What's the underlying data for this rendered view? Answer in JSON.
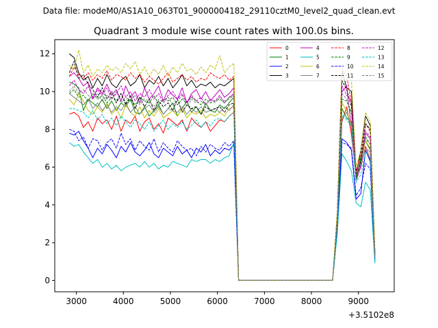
{
  "figure": {
    "suptitle": "Data file: modeM0/AS1A10_063T01_9000004182_29110cztM0_level2_quad_clean.evt",
    "title": "Quadrant 3 module wise count rates with 100.0s bins.",
    "x_offset_label": "+3.5102e8"
  },
  "chart_data": {
    "type": "line",
    "title": "Quadrant 3 module wise count rates with 100.0s bins.",
    "xlabel": "",
    "ylabel": "",
    "x_offset": 351020000,
    "xlim": [
      2540,
      9760
    ],
    "ylim": [
      -0.6,
      12.75
    ],
    "x_ticks": [
      3000,
      4000,
      5000,
      6000,
      7000,
      8000,
      9000
    ],
    "y_ticks": [
      0,
      2,
      4,
      6,
      8,
      10,
      12
    ],
    "legend_position": "top-right",
    "grid": false,
    "x": [
      2850,
      2950,
      3050,
      3150,
      3250,
      3350,
      3450,
      3550,
      3650,
      3750,
      3850,
      3950,
      4050,
      4150,
      4250,
      4350,
      4450,
      4550,
      4650,
      4750,
      4850,
      4950,
      5050,
      5150,
      5250,
      5350,
      5450,
      5550,
      5650,
      5750,
      5850,
      5950,
      6050,
      6150,
      6250,
      6350,
      6450,
      6550,
      6650,
      6750,
      6850,
      6950,
      7050,
      7150,
      7250,
      7350,
      7450,
      7550,
      7650,
      7750,
      7850,
      7950,
      8050,
      8150,
      8250,
      8350,
      8450,
      8550,
      8650,
      8750,
      8850,
      8950,
      9050,
      9150,
      9250,
      9350,
      9450
    ],
    "gap_start_index": 36,
    "gap_end_index": 56,
    "series": [
      {
        "name": "0",
        "color": "#ff0000",
        "dash": "solid",
        "pre": [
          8.8,
          8.9,
          8.7,
          8.1,
          8.4,
          7.9,
          8.6,
          8.3,
          8.5,
          8.0,
          8.7,
          7.9,
          8.5,
          8.3,
          8.7,
          7.9,
          8.4,
          8.6,
          8.0,
          8.3,
          7.8,
          8.6,
          8.4,
          8.2,
          8.5,
          7.9,
          8.6,
          8.3,
          8.1,
          8.4,
          7.9,
          8.2,
          8.5,
          8.4,
          8.7,
          8.9
        ],
        "post": [
          3.0,
          8.4,
          9.2,
          7.7,
          5.6,
          6.0,
          7.1,
          6.4,
          1.1
        ]
      },
      {
        "name": "1",
        "color": "#008000",
        "dash": "solid",
        "pre": [
          10.5,
          10.4,
          10.2,
          9.0,
          9.6,
          9.4,
          9.2,
          9.6,
          9.1,
          9.5,
          9.0,
          9.4,
          9.2,
          9.6,
          8.9,
          8.8,
          9.2,
          8.7,
          9.0,
          9.3,
          8.8,
          9.1,
          9.4,
          8.7,
          9.1,
          9.5,
          8.9,
          9.2,
          8.8,
          9.4,
          9.0,
          8.9,
          9.3,
          9.1,
          9.4,
          9.7
        ],
        "post": [
          3.2,
          9.1,
          8.6,
          8.4,
          5.4,
          6.5,
          7.4,
          6.9,
          1.3
        ]
      },
      {
        "name": "2",
        "color": "#0000ff",
        "dash": "solid",
        "pre": [
          7.8,
          7.7,
          7.9,
          7.4,
          7.0,
          6.5,
          7.0,
          6.7,
          7.2,
          6.9,
          6.5,
          7.1,
          6.8,
          7.3,
          6.8,
          6.6,
          6.9,
          7.3,
          6.7,
          6.5,
          7.0,
          6.8,
          6.6,
          7.1,
          6.7,
          6.9,
          6.5,
          7.0,
          6.8,
          7.2,
          6.6,
          6.9,
          6.7,
          7.0,
          6.9,
          7.2
        ],
        "post": [
          2.8,
          7.5,
          7.3,
          6.9,
          4.3,
          4.6,
          6.9,
          6.3,
          1.0
        ]
      },
      {
        "name": "3",
        "color": "#000000",
        "dash": "solid",
        "pre": [
          12.0,
          11.8,
          11.0,
          10.6,
          10.8,
          10.2,
          10.7,
          10.3,
          10.9,
          10.4,
          10.2,
          10.6,
          10.8,
          10.3,
          10.5,
          10.9,
          10.2,
          10.6,
          10.4,
          10.8,
          10.3,
          10.7,
          10.2,
          10.5,
          10.9,
          10.3,
          10.6,
          10.2,
          10.4,
          10.3,
          10.5,
          10.2,
          10.4,
          10.3,
          10.5,
          10.7
        ],
        "post": [
          3.6,
          11.1,
          10.2,
          10.0,
          5.6,
          6.9,
          8.7,
          8.2,
          1.5
        ]
      },
      {
        "name": "4",
        "color": "#bf00bf",
        "dash": "solid",
        "pre": [
          10.8,
          11.0,
          10.7,
          10.3,
          10.5,
          9.6,
          10.2,
          9.9,
          10.4,
          9.8,
          10.1,
          9.5,
          10.3,
          9.7,
          10.0,
          9.4,
          10.2,
          9.6,
          9.9,
          10.3,
          9.5,
          10.1,
          9.8,
          9.6,
          10.2,
          9.4,
          9.9,
          10.1,
          9.6,
          10.0,
          9.5,
          9.8,
          10.1,
          9.7,
          9.9,
          10.2
        ],
        "post": [
          3.3,
          10.0,
          10.3,
          8.0,
          5.3,
          6.0,
          7.8,
          7.5,
          1.3
        ]
      },
      {
        "name": "5",
        "color": "#00bfbf",
        "dash": "solid",
        "pre": [
          7.3,
          7.1,
          7.2,
          6.8,
          6.5,
          6.2,
          6.4,
          6.0,
          6.2,
          5.9,
          6.1,
          5.8,
          6.0,
          6.1,
          6.2,
          6.0,
          6.3,
          6.0,
          6.2,
          5.9,
          6.1,
          6.0,
          6.3,
          6.2,
          6.1,
          6.0,
          6.4,
          6.3,
          6.4,
          6.4,
          6.2,
          6.4,
          6.3,
          6.5,
          6.6,
          7.3
        ],
        "post": [
          2.5,
          6.7,
          6.3,
          5.8,
          4.1,
          3.9,
          5.2,
          4.8,
          0.9
        ]
      },
      {
        "name": "6",
        "color": "#bfbf00",
        "dash": "solid",
        "pre": [
          9.6,
          9.3,
          9.9,
          9.5,
          9.0,
          8.8,
          9.2,
          8.9,
          9.4,
          8.8,
          9.1,
          8.6,
          9.3,
          8.9,
          8.7,
          9.2,
          8.6,
          9.0,
          8.7,
          9.1,
          8.6,
          8.8,
          9.0,
          8.7,
          9.1,
          8.6,
          8.9,
          8.8,
          9.0,
          8.6,
          8.8,
          8.7,
          8.9,
          8.7,
          9.1,
          9.2
        ],
        "post": [
          3.1,
          9.4,
          9.0,
          8.2,
          5.5,
          6.2,
          7.4,
          7.0,
          1.2
        ]
      },
      {
        "name": "7",
        "color": "#808080",
        "dash": "solid",
        "pre": [
          9.9,
          9.7,
          9.5,
          9.3,
          9.6,
          9.1,
          9.4,
          9.0,
          9.3,
          8.9,
          9.2,
          9.0,
          9.4,
          8.9,
          9.2,
          8.8,
          9.1,
          9.3,
          8.9,
          9.2,
          8.8,
          9.1,
          9.0,
          8.9,
          9.2,
          8.8,
          9.1,
          8.9,
          9.2,
          8.9,
          9.0,
          9.1,
          8.9,
          9.2,
          9.0,
          9.3
        ],
        "post": [
          3.2,
          8.6,
          8.9,
          8.1,
          5.7,
          6.1,
          7.0,
          6.8,
          1.2
        ]
      },
      {
        "name": "8",
        "color": "#ff0000",
        "dash": "dashed",
        "pre": [
          10.8,
          11.3,
          10.9,
          10.7,
          11.0,
          10.6,
          10.9,
          10.7,
          11.1,
          10.6,
          10.9,
          10.8,
          10.6,
          11.0,
          10.7,
          10.9,
          10.5,
          10.8,
          10.6,
          10.4,
          10.7,
          11.0,
          10.5,
          10.7,
          10.9,
          10.6,
          10.8,
          10.5,
          10.7,
          10.6,
          11.0,
          10.8,
          10.7,
          10.9,
          10.6,
          10.8
        ],
        "post": [
          3.5,
          11.2,
          10.8,
          9.4,
          5.8,
          6.6,
          8.3,
          7.9,
          1.4
        ]
      },
      {
        "name": "9",
        "color": "#008000",
        "dash": "dashed",
        "pre": [
          9.9,
          10.1,
          9.7,
          9.8,
          9.5,
          9.9,
          9.6,
          9.8,
          9.4,
          9.7,
          9.5,
          9.9,
          9.4,
          9.6,
          9.3,
          9.7,
          9.5,
          9.4,
          9.8,
          9.3,
          9.6,
          9.5,
          9.7,
          9.3,
          9.6,
          9.4,
          9.7,
          9.5,
          9.3,
          9.6,
          9.4,
          9.5,
          9.6,
          9.4,
          9.7,
          9.8
        ],
        "post": [
          3.3,
          9.6,
          9.5,
          8.8,
          5.3,
          6.4,
          7.6,
          7.2,
          1.3
        ]
      },
      {
        "name": "10",
        "color": "#0000ff",
        "dash": "dashed",
        "pre": [
          8.0,
          7.9,
          7.4,
          7.6,
          7.0,
          7.5,
          7.4,
          6.9,
          7.3,
          7.5,
          7.0,
          7.8,
          7.2,
          7.5,
          6.9,
          7.4,
          7.1,
          6.9,
          7.5,
          6.8,
          7.3,
          7.0,
          6.8,
          7.4,
          7.1,
          6.9,
          7.0,
          6.6,
          7.1,
          6.8,
          7.2,
          7.0,
          6.9,
          7.3,
          7.1,
          7.4
        ],
        "post": [
          2.9,
          7.3,
          7.2,
          7.0,
          4.5,
          4.9,
          6.2,
          5.9,
          1.1
        ]
      },
      {
        "name": "11",
        "color": "#000000",
        "dash": "dashed",
        "pre": [
          11.0,
          11.6,
          10.7,
          10.9,
          10.4,
          10.1,
          9.7,
          10.2,
          9.6,
          10.0,
          9.4,
          9.9,
          9.3,
          9.8,
          9.1,
          9.7,
          9.2,
          9.6,
          9.0,
          9.5,
          9.2,
          9.4,
          9.0,
          9.6,
          8.9,
          9.3,
          9.1,
          9.2,
          8.8,
          9.2,
          9.0,
          9.1,
          9.2,
          8.9,
          9.3,
          9.4
        ],
        "post": [
          3.4,
          10.6,
          10.1,
          9.2,
          5.5,
          6.3,
          8.3,
          8.0,
          1.5
        ]
      },
      {
        "name": "12",
        "color": "#bf00bf",
        "dash": "dashed",
        "pre": [
          10.3,
          10.6,
          10.1,
          9.9,
          10.3,
          9.7,
          10.1,
          9.8,
          10.2,
          9.6,
          9.9,
          10.3,
          9.7,
          10.0,
          9.5,
          9.9,
          9.7,
          10.1,
          9.6,
          9.9,
          9.4,
          9.8,
          10.0,
          9.6,
          9.9,
          9.4,
          9.8,
          9.5,
          9.7,
          9.3,
          9.6,
          9.5,
          9.8,
          9.4,
          9.7,
          9.9
        ],
        "post": [
          3.3,
          10.3,
          9.8,
          9.5,
          5.9,
          6.0,
          7.9,
          7.6,
          1.3
        ]
      },
      {
        "name": "13",
        "color": "#00bfbf",
        "dash": "dashed",
        "pre": [
          9.1,
          9.1,
          9.0,
          8.9,
          8.6,
          9.0,
          8.5,
          8.8,
          8.3,
          8.6,
          8.2,
          8.7,
          8.4,
          8.1,
          8.5,
          8.3,
          8.0,
          8.4,
          7.9,
          8.2,
          8.5,
          8.0,
          8.3,
          8.1,
          8.4,
          8.0,
          8.2,
          8.5,
          8.1,
          8.4,
          8.2,
          8.5,
          8.6,
          8.4,
          8.7,
          8.9
        ],
        "post": [
          3.1,
          8.8,
          8.5,
          8.2,
          5.2,
          5.6,
          6.8,
          6.5,
          1.1
        ]
      },
      {
        "name": "14",
        "color": "#bfbf00",
        "dash": "dashed",
        "pre": [
          11.4,
          11.2,
          12.2,
          11.0,
          11.4,
          10.8,
          11.2,
          11.0,
          11.4,
          11.1,
          11.3,
          11.0,
          11.5,
          11.2,
          11.6,
          10.9,
          11.3,
          10.8,
          11.2,
          10.9,
          11.4,
          10.8,
          11.3,
          11.0,
          11.5,
          11.1,
          11.2,
          10.9,
          11.3,
          11.0,
          11.4,
          11.2,
          11.9,
          11.0,
          11.3,
          11.5
        ],
        "post": [
          3.7,
          11.2,
          10.7,
          10.6,
          6.0,
          6.9,
          8.9,
          8.4,
          1.6
        ]
      },
      {
        "name": "15",
        "color": "#808080",
        "dash": "dashed",
        "pre": [
          10.0,
          10.3,
          9.9,
          10.1,
          9.8,
          9.6,
          9.9,
          9.5,
          9.8,
          9.6,
          10.0,
          9.4,
          9.7,
          9.5,
          9.8,
          9.3,
          9.6,
          9.5,
          9.2,
          9.6,
          9.4,
          9.7,
          9.3,
          9.5,
          9.8,
          9.2,
          9.6,
          9.4,
          9.5,
          9.3,
          9.6,
          9.4,
          9.7,
          9.5,
          9.6,
          9.8
        ],
        "post": [
          3.2,
          9.9,
          9.6,
          8.9,
          5.6,
          6.2,
          7.5,
          7.2,
          1.2
        ]
      }
    ]
  }
}
